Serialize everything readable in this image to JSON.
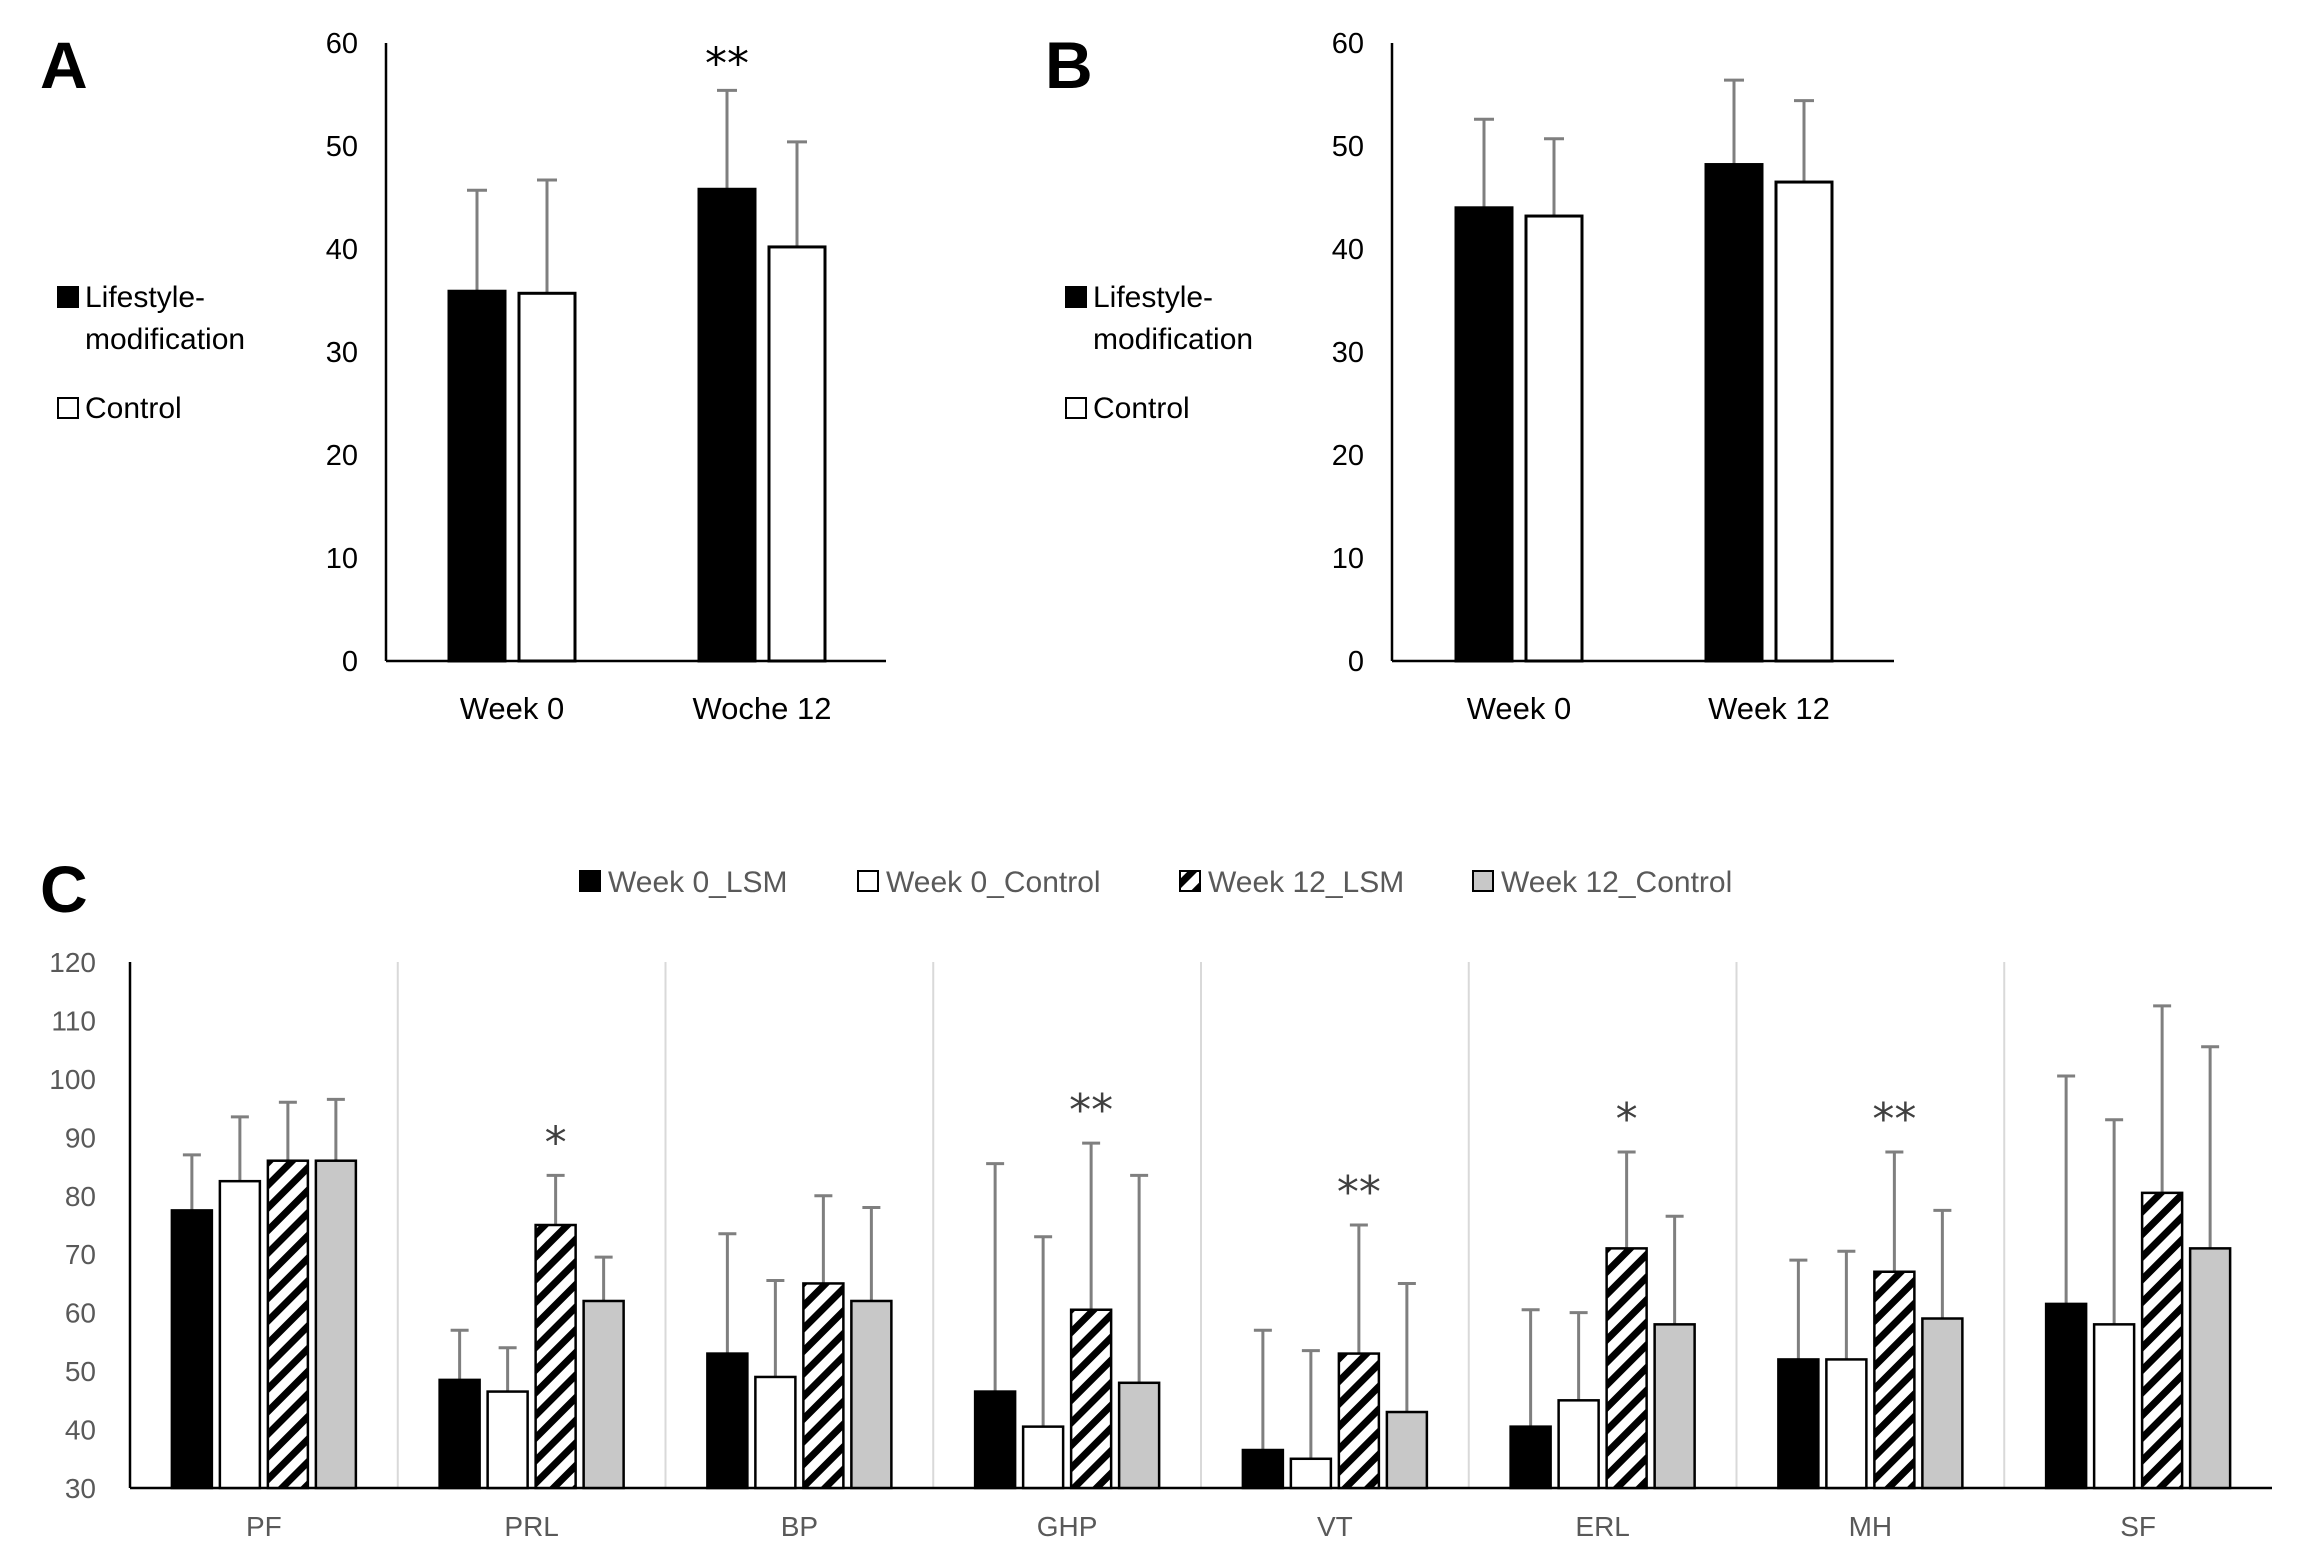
{
  "chart_data": [
    {
      "panel": "A",
      "type": "bar",
      "categories": [
        "Week 0",
        "Woche 12"
      ],
      "series": [
        {
          "name": "Lifestyle-modification",
          "values": [
            35.9,
            45.8
          ],
          "errors": [
            9.8,
            9.6
          ]
        },
        {
          "name": "Control",
          "values": [
            35.7,
            40.2
          ],
          "errors": [
            11.0,
            10.2
          ]
        }
      ],
      "ylim": [
        0,
        60
      ],
      "yticks": [
        0,
        10,
        20,
        30,
        40,
        50,
        60
      ],
      "legend_lines": [
        [
          "Lifestyle-",
          "modification"
        ],
        [
          "Control"
        ]
      ],
      "annotations": [
        {
          "category": 1,
          "text": "**"
        }
      ],
      "legend_position": "left"
    },
    {
      "panel": "B",
      "type": "bar",
      "categories": [
        "Week 0",
        "Week 12"
      ],
      "series": [
        {
          "name": "Lifestyle-modification",
          "values": [
            44.0,
            48.2
          ],
          "errors": [
            8.6,
            8.2
          ]
        },
        {
          "name": "Control",
          "values": [
            43.2,
            46.5
          ],
          "errors": [
            7.5,
            7.9
          ]
        }
      ],
      "ylim": [
        0,
        60
      ],
      "yticks": [
        0,
        10,
        20,
        30,
        40,
        50,
        60
      ],
      "legend_lines": [
        [
          "Lifestyle-",
          "modification"
        ],
        [
          "Control"
        ]
      ],
      "annotations": [],
      "legend_position": "left"
    },
    {
      "panel": "C",
      "type": "bar",
      "categories": [
        "PF",
        "PRL",
        "BP",
        "GHP",
        "VT",
        "ERL",
        "MH",
        "SF"
      ],
      "series": [
        {
          "name": "Week 0_LSM",
          "values": [
            77.5,
            48.5,
            53.0,
            46.5,
            36.5,
            40.5,
            52.0,
            61.5
          ],
          "errors": [
            9.5,
            8.5,
            20.5,
            39.0,
            20.5,
            20.0,
            17.0,
            39.0
          ]
        },
        {
          "name": "Week 0_Control",
          "values": [
            82.5,
            46.5,
            49.0,
            40.5,
            35.0,
            45.0,
            52.0,
            58.0
          ],
          "errors": [
            11.0,
            7.5,
            16.5,
            32.5,
            18.5,
            15.0,
            18.5,
            35.0
          ]
        },
        {
          "name": "Week 12_LSM",
          "values": [
            86.0,
            75.0,
            65.0,
            60.5,
            53.0,
            71.0,
            67.0,
            80.5
          ],
          "errors": [
            10.0,
            8.5,
            15.0,
            28.5,
            22.0,
            16.5,
            20.5,
            32.0
          ]
        },
        {
          "name": "Week 12_Control",
          "values": [
            86.0,
            62.0,
            62.0,
            48.0,
            43.0,
            58.0,
            59.0,
            71.0
          ],
          "errors": [
            10.5,
            7.5,
            16.0,
            35.5,
            22.0,
            18.5,
            18.5,
            34.5
          ]
        }
      ],
      "ylim": [
        30,
        120
      ],
      "yticks": [
        30,
        40,
        50,
        60,
        70,
        80,
        90,
        100,
        110,
        120
      ],
      "annotations": [
        {
          "category": 1,
          "series": 2,
          "text": "*"
        },
        {
          "category": 3,
          "series": 2,
          "text": "**"
        },
        {
          "category": 4,
          "series": 2,
          "text": "**"
        },
        {
          "category": 5,
          "series": 2,
          "text": "*"
        },
        {
          "category": 6,
          "series": 2,
          "text": "**"
        }
      ],
      "legend_position": "top"
    }
  ],
  "colors": {
    "lsm": "#000000",
    "control": "#ffffff",
    "week12_control": "#c8c8c8",
    "error_bar": "#7f7f7f",
    "grid": "#d9d9d9",
    "axis": "#000000"
  }
}
